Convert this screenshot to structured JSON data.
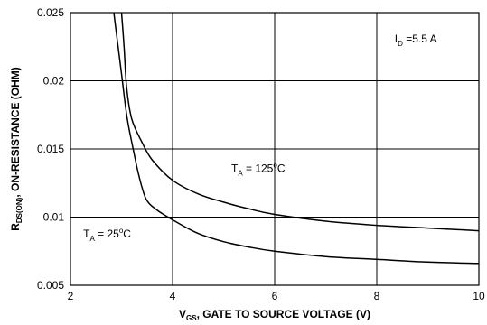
{
  "chart_data": {
    "type": "line",
    "title": "",
    "xlabel": {
      "main": "V",
      "sub": "GS",
      "rest": ", GATE TO SOURCE VOLTAGE (V)"
    },
    "ylabel": {
      "main": "R",
      "sub": "DS(ON)",
      "rest": ", ON-RESISTANCE (OHM)"
    },
    "xlim": [
      2,
      10
    ],
    "ylim": [
      0.005,
      0.025
    ],
    "xticks": [
      2,
      4,
      6,
      8,
      10
    ],
    "xtick_labels": [
      "2",
      "4",
      "6",
      "8",
      "10"
    ],
    "yticks": [
      0.005,
      0.01,
      0.015,
      0.02,
      0.025
    ],
    "ytick_labels": [
      "0.005",
      "0.01",
      "0.015",
      "0.02",
      "0.025"
    ],
    "grid": true,
    "annotations": [
      {
        "id": "id-note",
        "main": "I",
        "sub": "D",
        "rest": " =5.5 A",
        "x": 8.35,
        "y": 0.0228
      },
      {
        "id": "ta125-note",
        "main": "T",
        "sub": "A",
        "mid": " = 125",
        "sup": "o",
        "rest": "C",
        "x": 5.15,
        "y": 0.0133
      },
      {
        "id": "ta25-note",
        "main": "T",
        "sub": "A",
        "mid": " = 25",
        "sup": "o",
        "rest": "C",
        "x": 2.25,
        "y": 0.0085
      }
    ],
    "series": [
      {
        "label": "TA = 25°C",
        "color": "#000000",
        "x": [
          2.85,
          2.9,
          3.0,
          3.1,
          3.2,
          3.3,
          3.4,
          3.5,
          3.7,
          4.0,
          4.5,
          5.0,
          5.5,
          6.0,
          7.0,
          8.0,
          9.0,
          10.0
        ],
        "y": [
          0.025,
          0.0235,
          0.0205,
          0.0175,
          0.0155,
          0.0137,
          0.0122,
          0.0112,
          0.0105,
          0.0098,
          0.0088,
          0.0082,
          0.0078,
          0.0075,
          0.0071,
          0.0069,
          0.0067,
          0.0066
        ]
      },
      {
        "label": "TA = 125°C",
        "color": "#000000",
        "x": [
          3.0,
          3.05,
          3.1,
          3.2,
          3.4,
          3.6,
          4.0,
          4.5,
          5.0,
          5.5,
          6.0,
          7.0,
          8.0,
          9.0,
          10.0
        ],
        "y": [
          0.025,
          0.0225,
          0.0195,
          0.0172,
          0.0155,
          0.0142,
          0.0127,
          0.0117,
          0.0111,
          0.0106,
          0.0102,
          0.0097,
          0.0094,
          0.0092,
          0.009
        ]
      }
    ]
  }
}
